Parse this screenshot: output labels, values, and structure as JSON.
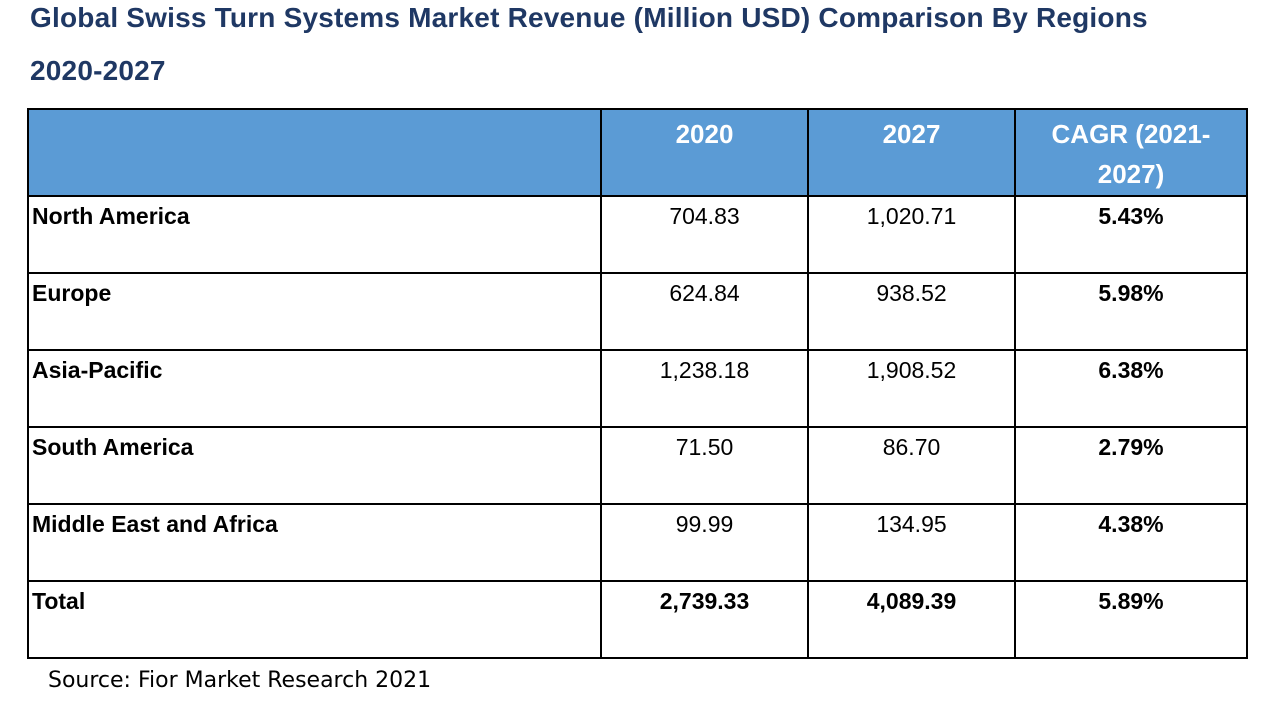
{
  "page": {
    "title_line1": "Global Swiss Turn Systems Market Revenue (Million USD) Comparison By Regions",
    "title_line2": "2020-2027",
    "source_note": "Source: Fior Market Research 2021"
  },
  "colors": {
    "title_text": "#1F3864",
    "header_bg": "#5B9BD5",
    "header_text": "#FFFFFF",
    "grid_border": "#000000",
    "body_text": "#000000",
    "background": "#FFFFFF"
  },
  "chart_data": {
    "type": "table",
    "title": "Global Swiss Turn Systems Market Revenue (Million USD) Comparison By Regions 2020-2027",
    "columns": [
      "",
      "2020",
      "2027",
      "CAGR (2021-2027)"
    ],
    "rows": [
      [
        "North America",
        "704.83",
        "1,020.71",
        "5.43%"
      ],
      [
        "Europe",
        "624.84",
        "938.52",
        "5.98%"
      ],
      [
        "Asia-Pacific",
        "1,238.18",
        "1,908.52",
        "6.38%"
      ],
      [
        "South America",
        "71.50",
        "86.70",
        "2.79%"
      ],
      [
        "Middle East and Africa",
        "99.99",
        "134.95",
        "4.38%"
      ],
      [
        "Total",
        "2,739.33",
        "4,089.39",
        "5.89%"
      ]
    ],
    "units": "Million USD",
    "source": "Fior Market Research 2021",
    "layout": {
      "header_style": "blue background, white bold text",
      "bold_columns": [
        "region",
        "cagr"
      ],
      "bold_rows": [
        "Total"
      ]
    }
  }
}
